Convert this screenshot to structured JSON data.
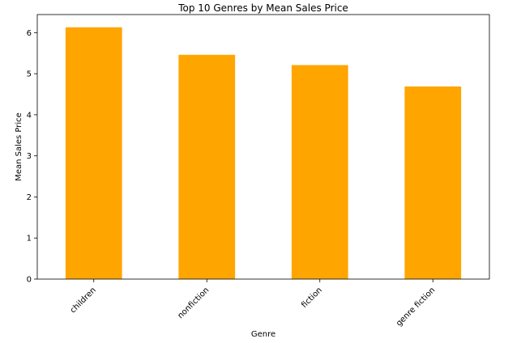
{
  "chart_data": {
    "type": "bar",
    "title": "Top 10 Genres by Mean Sales Price",
    "xlabel": "Genre",
    "ylabel": "Mean Sales Price",
    "categories": [
      "children",
      "nonfiction",
      "fiction",
      "genre fiction"
    ],
    "values": [
      6.13,
      5.46,
      5.21,
      4.69
    ],
    "ylim": [
      0,
      6.44
    ],
    "yticks": [
      0,
      1,
      2,
      3,
      4,
      5,
      6
    ],
    "bar_color": "#ffa500",
    "grid": false,
    "legend": "none"
  }
}
